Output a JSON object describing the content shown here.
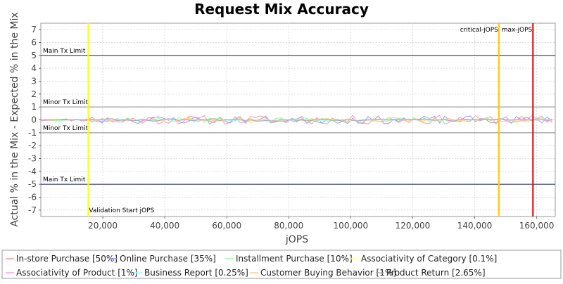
{
  "chart_data": {
    "type": "line",
    "title": "Request Mix Accuracy",
    "xlabel": "jOPS",
    "ylabel": "Actual % in the Mix - Expected % in the Mix",
    "xlim": [
      0,
      166000
    ],
    "ylim": [
      -7.5,
      7.5
    ],
    "x_ticks": [
      20000,
      40000,
      60000,
      80000,
      100000,
      120000,
      140000,
      160000
    ],
    "x_tick_labels": [
      "20,000",
      "40,000",
      "60,000",
      "80,000",
      "100,000",
      "120,000",
      "140,000",
      "160,000"
    ],
    "y_ticks": [
      -7,
      -6,
      -5,
      -4,
      -3,
      -2,
      -1,
      0,
      1,
      2,
      3,
      4,
      5,
      6,
      7
    ],
    "y_tick_labels": [
      "-7",
      "-6",
      "-5",
      "-4",
      "-3",
      "-2",
      "-1",
      "0",
      "1",
      "2",
      "3",
      "4",
      "5",
      "6",
      "7"
    ],
    "grid": true,
    "legend_position": "bottom",
    "limit_lines": [
      {
        "label": "Main Tx Limit",
        "y": 5,
        "color": "#1a1a66",
        "label_side": "above"
      },
      {
        "label": "Minor Tx Limit",
        "y": 1,
        "color": "#888888",
        "label_side": "above"
      },
      {
        "label": "Minor Tx Limit",
        "y": -1,
        "color": "#888888",
        "label_side": "above"
      },
      {
        "label": "Main Tx Limit",
        "y": -5,
        "color": "#1a1a66",
        "label_side": "above"
      }
    ],
    "vertical_markers": [
      {
        "label": "Validation Start jOPS",
        "x": 15300,
        "color": "#ffff00",
        "label_pos": "bottom"
      },
      {
        "label": "critical-jOPS",
        "x": 147800,
        "color": "#ffc400",
        "label_pos": "top"
      },
      {
        "label": "max-jOPS",
        "x": 158800,
        "color": "#dd0000",
        "label_pos": "top"
      }
    ],
    "series": [
      {
        "name": "In-store Purchase [50%]",
        "color": "#ff9999",
        "amplitude": 0.35,
        "seed": 11
      },
      {
        "name": "Online Purchase [35%]",
        "color": "#9999ff",
        "amplitude": 0.3,
        "seed": 23
      },
      {
        "name": "Installment Purchase [10%]",
        "color": "#99ff99",
        "amplitude": 0.2,
        "seed": 37
      },
      {
        "name": "Associativity of Category [0.1%]",
        "color": "#ffff99",
        "amplitude": 0.03,
        "seed": 41
      },
      {
        "name": "Associativity of Product [1%]",
        "color": "#ff99ff",
        "amplitude": 0.08,
        "seed": 53
      },
      {
        "name": "Business Report [0.25%]",
        "color": "#99ffff",
        "amplitude": 0.05,
        "seed": 67
      },
      {
        "name": "Customer Buying Behavior [1%]",
        "color": "#ffcc99",
        "amplitude": 0.12,
        "seed": 71
      },
      {
        "name": "Product Return [2.65%]",
        "color": "#aaaaaa",
        "amplitude": 0.1,
        "seed": 83
      }
    ],
    "series_x_start": 0,
    "series_x_end": 166000,
    "series_x_step": 1650
  }
}
